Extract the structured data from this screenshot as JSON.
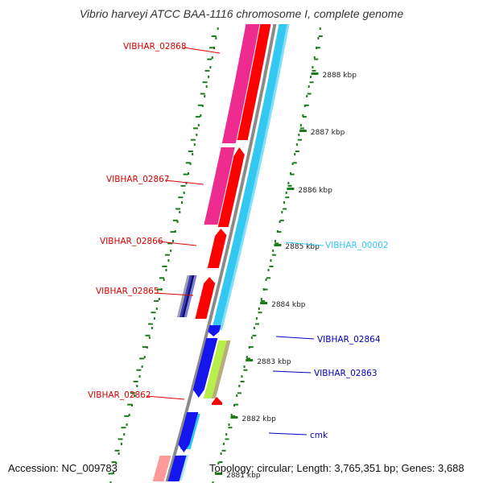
{
  "title": "Vibrio harveyi ATCC BAA-1116 chromosome I, complete genome",
  "footer": {
    "accession": "Accession: NC_009783",
    "topology": "Topology: circular; Length: 3,765,351 bp; Genes: 3,688"
  },
  "colors": {
    "forward_track": "#ff0000",
    "forward_light": "#ff9a9a",
    "pink_track": "#ee2c90",
    "reverse_track": "#33c8f2",
    "reverse_light": "#a8e8f8",
    "blue_gene": "#1515ee",
    "navy_gene": "#101070",
    "lime_gene": "#b7f04a",
    "olive_gene": "#b8ae7a",
    "backbone": "#8a8a8a",
    "tick": "#1d7a1d",
    "gene_label_forward": "#dd0000",
    "gene_label_reverse_blue": "#0000c0",
    "gene_label_reverse_cyan": "#33c8f2",
    "kbp_label": "#222222"
  },
  "kbp_ticks": [
    "2888 kbp",
    "2887 kbp",
    "2886 kbp",
    "2885 kbp",
    "2884 kbp",
    "2883 kbp",
    "2882 kbp",
    "2881 kbp"
  ],
  "gene_labels": {
    "VIBHAR_02868": "VIBHAR_02868",
    "VIBHAR_02867": "VIBHAR_02867",
    "VIBHAR_02866": "VIBHAR_02866",
    "VIBHAR_02865": "VIBHAR_02865",
    "VIBHAR_02862": "VIBHAR_02862",
    "VIBHAR_00002": "VIBHAR_00002",
    "VIBHAR_02864": "VIBHAR_02864",
    "VIBHAR_02863": "VIBHAR_02863",
    "cmk": "cmk"
  }
}
